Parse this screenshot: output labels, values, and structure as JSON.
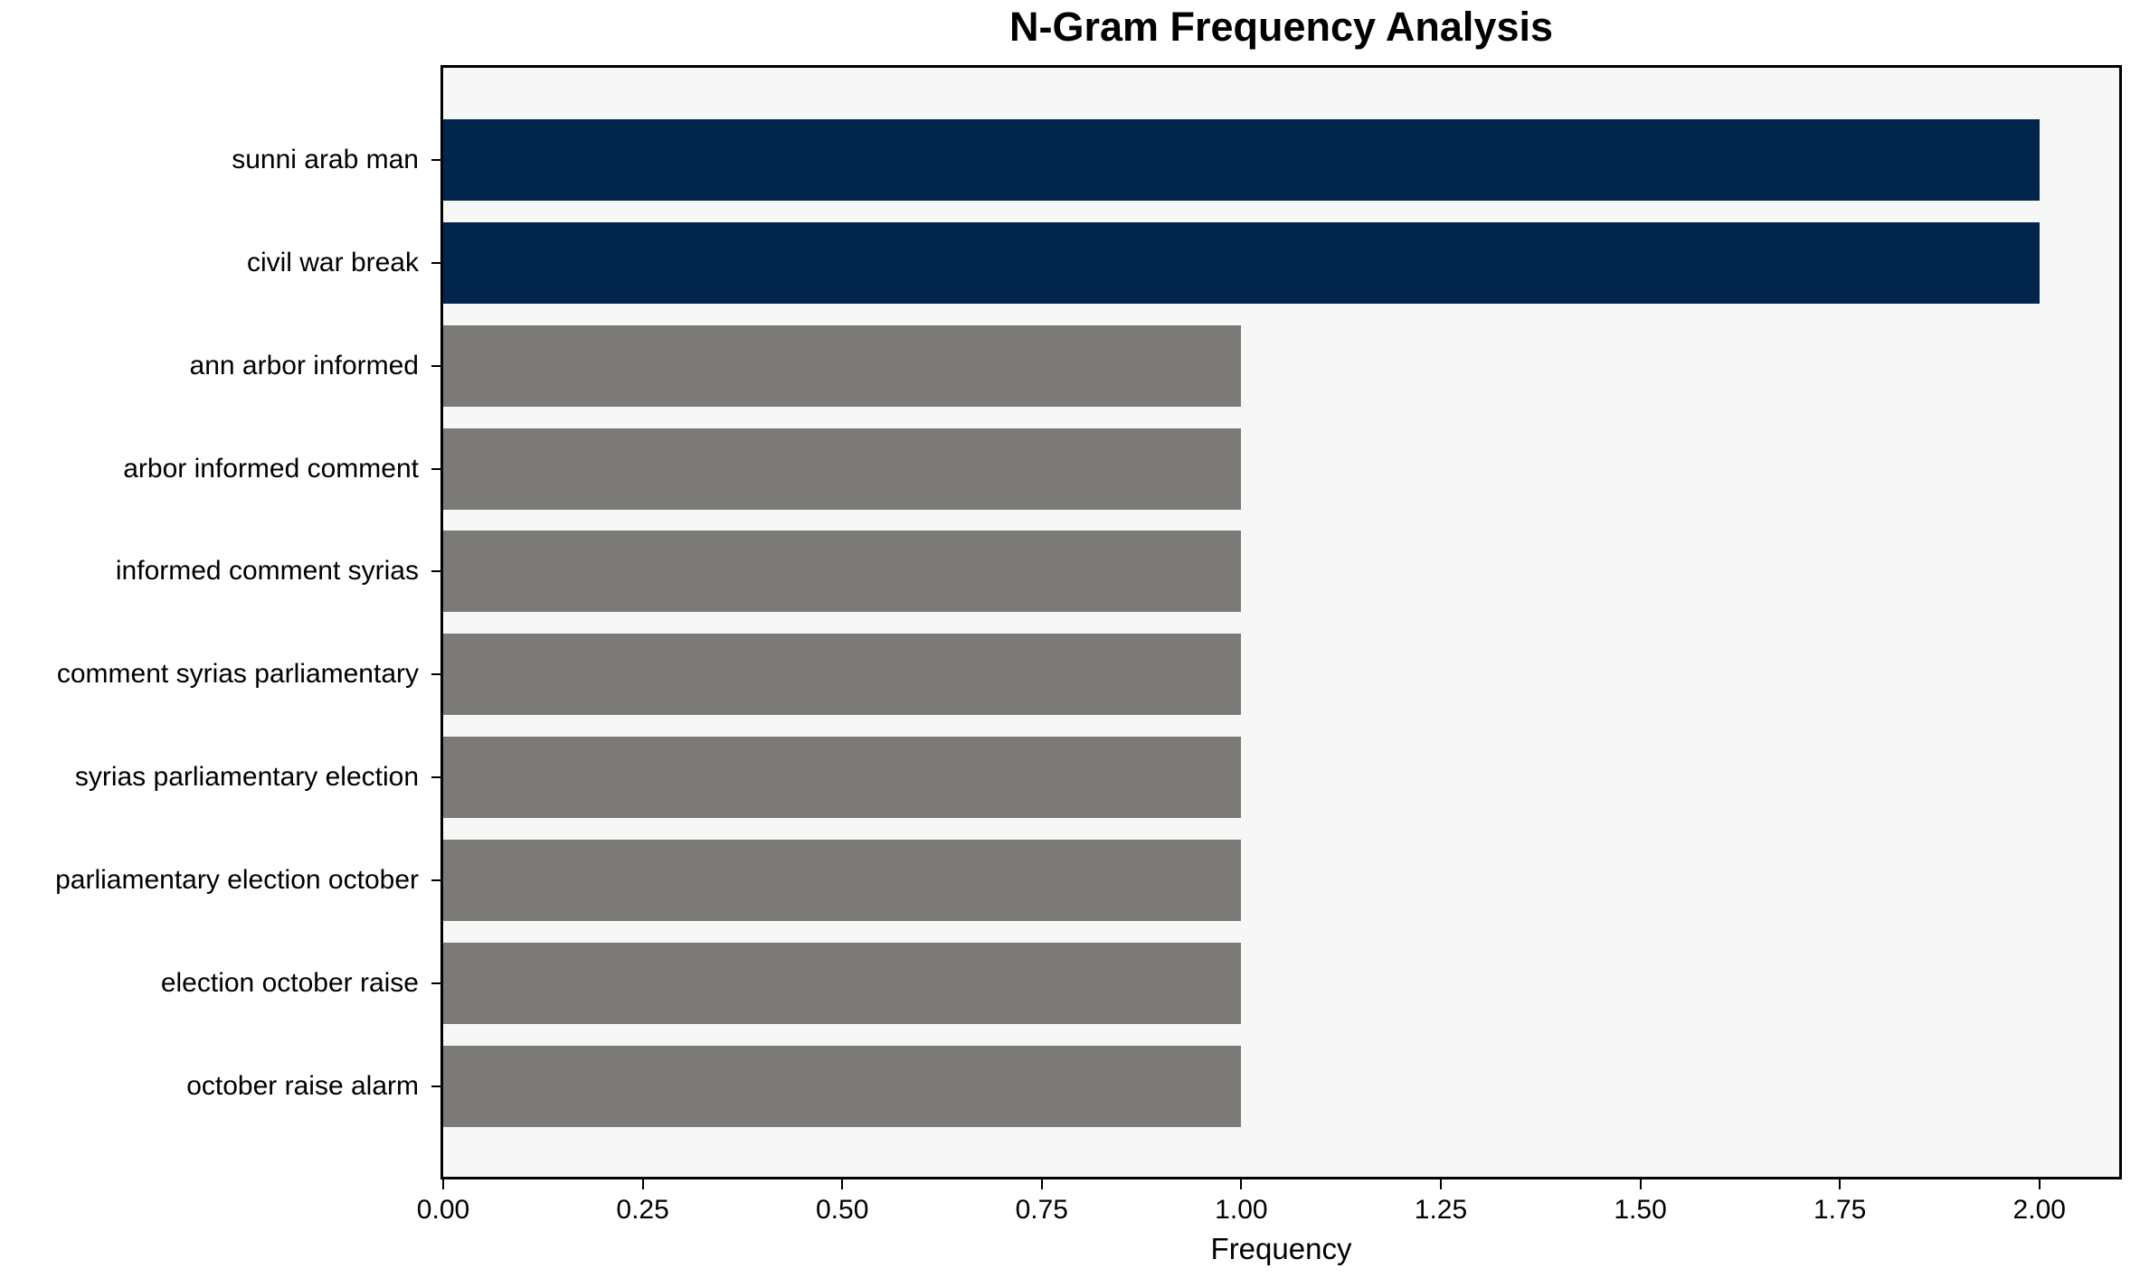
{
  "chart_data": {
    "type": "bar",
    "orientation": "horizontal",
    "title": "N-Gram Frequency Analysis",
    "xlabel": "Frequency",
    "ylabel": "",
    "categories": [
      "sunni arab man",
      "civil war break",
      "ann arbor informed",
      "arbor informed comment",
      "informed comment syrias",
      "comment syrias parliamentary",
      "syrias parliamentary election",
      "parliamentary election october",
      "election october raise",
      "october raise alarm"
    ],
    "values": [
      2,
      2,
      1,
      1,
      1,
      1,
      1,
      1,
      1,
      1
    ],
    "bar_colors": [
      "#02254d",
      "#02254d",
      "#7b7a77",
      "#7b7a77",
      "#7b7a77",
      "#7b7a77",
      "#7b7a77",
      "#7b7a77",
      "#7b7a77",
      "#7b7a77"
    ],
    "xticks": [
      0,
      0.25,
      0.5,
      0.75,
      1.0,
      1.25,
      1.5,
      1.75,
      2.0
    ],
    "xtick_labels": [
      "0.00",
      "0.25",
      "0.50",
      "0.75",
      "1.00",
      "1.25",
      "1.50",
      "1.75",
      "2.00"
    ],
    "xlim": [
      0,
      2.1
    ],
    "grid": false,
    "legend_position": "none",
    "colors": {
      "highlight": "#02254d",
      "default_bar": "#7b7a77",
      "plot_background": "#f7f7f7",
      "figure_background": "#ffffff",
      "spine": "#000000",
      "text": "#000000"
    }
  }
}
